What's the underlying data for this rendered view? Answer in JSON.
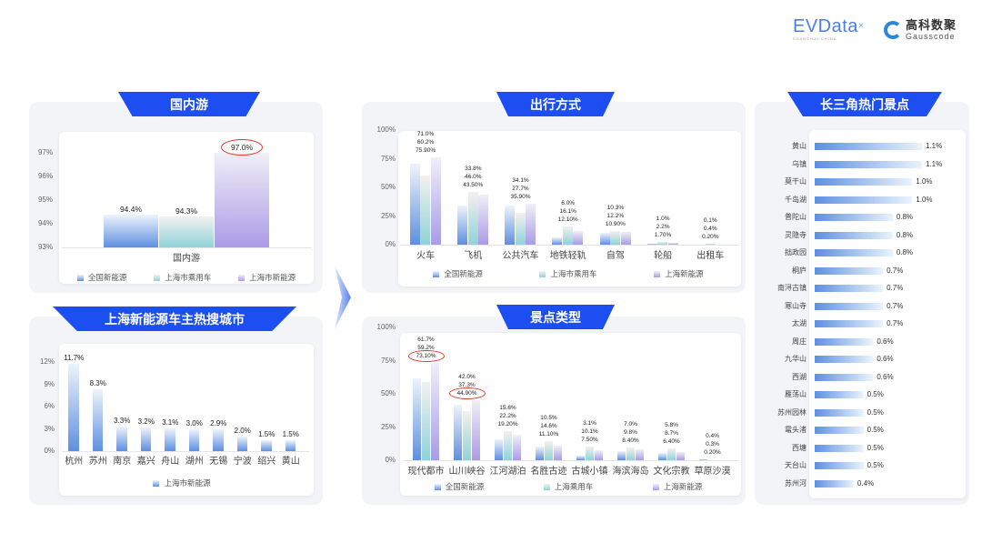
{
  "header": {
    "logo_evdata": "EVData",
    "logo_evdata_sub": "SHANGHAI CHINA",
    "logo_gauss_cn": "高科数聚",
    "logo_gauss_en": "Gausscode"
  },
  "colors": {
    "banner": "#1d4ef2",
    "series1": "#5e8fe0",
    "series2": "#8fd3d8",
    "series3": "#a99be6",
    "highlight": "#e03a2e"
  },
  "banners": {
    "domestic": "国内游",
    "cities": "上海新能源车主热搜城市",
    "transport": "出行方式",
    "scenic_type": "景点类型",
    "hot_spots": "长三角热门景点"
  },
  "chart_data": [
    {
      "id": "domestic",
      "type": "bar",
      "title": "国内游",
      "categories": [
        "国内游"
      ],
      "ylim": [
        93,
        97
      ],
      "yticks": [
        "93%",
        "94%",
        "95%",
        "96%",
        "97%"
      ],
      "tickvals": [
        93,
        94,
        95,
        96,
        97
      ],
      "series": [
        {
          "name": "全国新能源",
          "values": [
            94.4
          ],
          "labels": [
            "94.4%"
          ]
        },
        {
          "name": "上海市乘用车",
          "values": [
            94.3
          ],
          "labels": [
            "94.3%"
          ]
        },
        {
          "name": "上海市新能源",
          "values": [
            97.0
          ],
          "labels": [
            "97.0%"
          ]
        }
      ],
      "circled": [
        [
          2,
          0
        ]
      ],
      "legend": "bottom"
    },
    {
      "id": "cities",
      "type": "bar",
      "title": "上海新能源车主热搜城市",
      "categories": [
        "杭州",
        "苏州",
        "南京",
        "嘉兴",
        "舟山",
        "湖州",
        "无锡",
        "宁波",
        "绍兴",
        "黄山"
      ],
      "ylim": [
        0,
        12
      ],
      "yticks": [
        "0%",
        "3%",
        "6%",
        "9%",
        "12%"
      ],
      "tickvals": [
        0,
        3,
        6,
        9,
        12
      ],
      "series": [
        {
          "name": "上海市新能源",
          "values": [
            11.7,
            8.3,
            3.3,
            3.2,
            3.1,
            3.0,
            2.9,
            2.0,
            1.5,
            1.5
          ],
          "labels": [
            "11.7%",
            "8.3%",
            "3.3%",
            "3.2%",
            "3.1%",
            "3.0%",
            "2.9%",
            "2.0%",
            "1.5%",
            "1.5%"
          ]
        }
      ],
      "circled": [],
      "legend": "bottom"
    },
    {
      "id": "transport",
      "type": "bar",
      "title": "出行方式",
      "categories": [
        "火车",
        "飞机",
        "公共汽车",
        "地铁轻轨",
        "自驾",
        "轮船",
        "出租车"
      ],
      "ylim": [
        0,
        100
      ],
      "yticks": [
        "0%",
        "25%",
        "50%",
        "75%",
        "100%"
      ],
      "tickvals": [
        0,
        25,
        50,
        75,
        100
      ],
      "series": [
        {
          "name": "全国新能源",
          "values": [
            71.0,
            33.8,
            34.1,
            6.0,
            10.3,
            1.0,
            0.1
          ],
          "labels": [
            "71.0%",
            "33.8%",
            "34.1%",
            "6.0%",
            "10.3%",
            "1.0%",
            "0.1%"
          ]
        },
        {
          "name": "上海市乘用车",
          "values": [
            60.2,
            46.0,
            27.7,
            16.1,
            12.2,
            2.2,
            0.4
          ],
          "labels": [
            "60.2%",
            "46.0%",
            "27.7%",
            "16.1%",
            "12.2%",
            "2.2%",
            "0.4%"
          ]
        },
        {
          "name": "上海新能源",
          "values": [
            75.9,
            43.5,
            35.9,
            12.1,
            10.9,
            1.7,
            0.2
          ],
          "labels": [
            "75.90%",
            "43.50%",
            "35.90%",
            "12.10%",
            "10.90%",
            "1.70%",
            "0.20%"
          ]
        }
      ],
      "circled": [],
      "legend": "bottom"
    },
    {
      "id": "scenic_type",
      "type": "bar",
      "title": "景点类型",
      "categories": [
        "现代都市",
        "山川峡谷",
        "江河湖泊",
        "名胜古迹",
        "古城小镇",
        "海滨海岛",
        "文化宗教",
        "草原沙漠"
      ],
      "ylim": [
        0,
        100
      ],
      "yticks": [
        "0%",
        "25%",
        "50%",
        "75%",
        "100%"
      ],
      "tickvals": [
        0,
        25,
        50,
        75,
        100
      ],
      "series": [
        {
          "name": "全国新能源",
          "values": [
            61.7,
            42.0,
            15.6,
            10.5,
            3.1,
            7.0,
            5.8,
            0.4
          ],
          "labels": [
            "61.7%",
            "42.0%",
            "15.6%",
            "10.5%",
            "3.1%",
            "7.0%",
            "5.8%",
            "0.4%"
          ]
        },
        {
          "name": "上海乘用车",
          "values": [
            59.2,
            37.3,
            22.2,
            14.6,
            10.1,
            9.8,
            8.7,
            0.3
          ],
          "labels": [
            "59.2%",
            "37.3%",
            "22.2%",
            "14.6%",
            "10.1%",
            "9.8%",
            "8.7%",
            "0.3%"
          ]
        },
        {
          "name": "上海新能源",
          "values": [
            73.1,
            44.9,
            19.2,
            11.1,
            7.5,
            8.4,
            6.4,
            0.2
          ],
          "labels": [
            "73.10%",
            "44.90%",
            "19.20%",
            "11.10%",
            "7.50%",
            "8.40%",
            "6.40%",
            "0.20%"
          ]
        }
      ],
      "circled": [
        [
          2,
          0
        ],
        [
          2,
          1
        ]
      ],
      "legend": "bottom"
    },
    {
      "id": "hot_spots",
      "type": "bar",
      "orientation": "horizontal",
      "title": "长三角热门景点",
      "categories": [
        "黄山",
        "乌镇",
        "莫干山",
        "千岛湖",
        "普陀山",
        "灵隐寺",
        "拙政园",
        "桐庐",
        "南浔古镇",
        "寒山寺",
        "太湖",
        "周庄",
        "九华山",
        "西湖",
        "雁荡山",
        "苏州园林",
        "鼋头渚",
        "西塘",
        "天台山",
        "苏州河"
      ],
      "values": [
        1.1,
        1.1,
        1.0,
        1.0,
        0.8,
        0.8,
        0.8,
        0.7,
        0.7,
        0.7,
        0.7,
        0.6,
        0.6,
        0.6,
        0.5,
        0.5,
        0.5,
        0.5,
        0.5,
        0.4
      ],
      "labels": [
        "1.1%",
        "1.1%",
        "1.0%",
        "1.0%",
        "0.8%",
        "0.8%",
        "0.8%",
        "0.7%",
        "0.7%",
        "0.7%",
        "0.7%",
        "0.6%",
        "0.6%",
        "0.6%",
        "0.5%",
        "0.5%",
        "0.5%",
        "0.5%",
        "0.5%",
        "0.4%"
      ]
    }
  ]
}
